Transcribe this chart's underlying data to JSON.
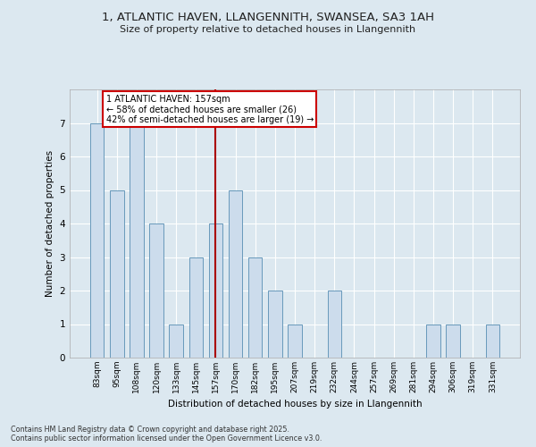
{
  "title1": "1, ATLANTIC HAVEN, LLANGENNITH, SWANSEA, SA3 1AH",
  "title2": "Size of property relative to detached houses in Llangennith",
  "xlabel": "Distribution of detached houses by size in Llangennith",
  "ylabel": "Number of detached properties",
  "categories": [
    "83sqm",
    "95sqm",
    "108sqm",
    "120sqm",
    "133sqm",
    "145sqm",
    "157sqm",
    "170sqm",
    "182sqm",
    "195sqm",
    "207sqm",
    "219sqm",
    "232sqm",
    "244sqm",
    "257sqm",
    "269sqm",
    "281sqm",
    "294sqm",
    "306sqm",
    "319sqm",
    "331sqm"
  ],
  "values": [
    7,
    5,
    7,
    4,
    1,
    3,
    4,
    5,
    3,
    2,
    1,
    0,
    2,
    0,
    0,
    0,
    0,
    1,
    1,
    0,
    1
  ],
  "bar_color": "#ccdcec",
  "bar_edge_color": "#6899bb",
  "highlight_index": 6,
  "highlight_line_color": "#aa0000",
  "annotation_title": "1 ATLANTIC HAVEN: 157sqm",
  "annotation_line1": "← 58% of detached houses are smaller (26)",
  "annotation_line2": "42% of semi-detached houses are larger (19) →",
  "annotation_box_facecolor": "#ffffff",
  "annotation_box_edgecolor": "#cc0000",
  "ylim": [
    0,
    8
  ],
  "yticks": [
    0,
    1,
    2,
    3,
    4,
    5,
    6,
    7
  ],
  "background_color": "#dce8f0",
  "plot_bg_color": "#dce8f0",
  "grid_color": "#ffffff",
  "footer1": "Contains HM Land Registry data © Crown copyright and database right 2025.",
  "footer2": "Contains public sector information licensed under the Open Government Licence v3.0."
}
